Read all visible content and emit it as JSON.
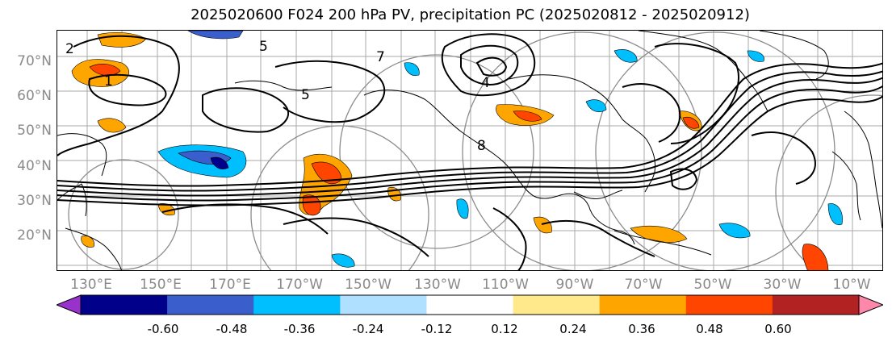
{
  "title": "2025020600 F024 200 hPa PV, precipitation PC (2025020812 - 2025020912)",
  "lat_labels": [
    "70°N",
    "60°N",
    "50°N",
    "40°N",
    "30°N",
    "20°N"
  ],
  "lon_labels": [
    "130°E",
    "150°E",
    "170°E",
    "170°W",
    "150°W",
    "130°W",
    "110°W",
    "90°W",
    "70°W",
    "50°W",
    "30°W",
    "10°W"
  ],
  "pv_contour_labels": [
    "5",
    "7",
    "8",
    "4",
    "5",
    "2",
    "1"
  ],
  "colorbar": {
    "labels": [
      "-0.60",
      "-0.48",
      "-0.36",
      "-0.24",
      "-0.12",
      "0.12",
      "0.24",
      "0.36",
      "0.48",
      "0.60"
    ],
    "colors": [
      "#9932cc",
      "#00008b",
      "#3a5fcd",
      "#00bfff",
      "#b0e0ff",
      "#ffffff",
      "#ffe98a",
      "#ffa500",
      "#ff4500",
      "#b22222",
      "#ff88aa"
    ]
  },
  "colors": {
    "pv_contour": "#000000",
    "coastline": "#000000",
    "grid": "#a9a9a9",
    "range_rings": "#8c8c8c"
  }
}
